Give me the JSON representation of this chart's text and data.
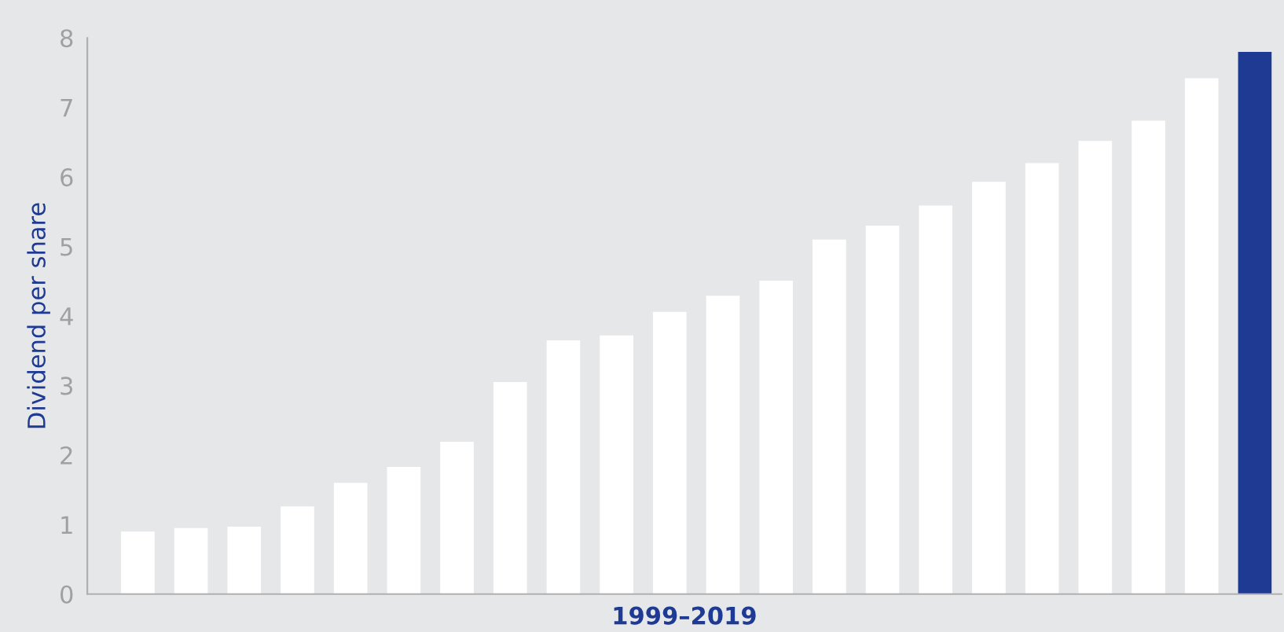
{
  "chart_data": {
    "type": "bar",
    "xlabel": "1999–2019",
    "ylabel": "Dividend per share",
    "categories": [
      null,
      null,
      null,
      null,
      null,
      null,
      null,
      null,
      null,
      null,
      null,
      null,
      null,
      null,
      null,
      null,
      null,
      null,
      null,
      null,
      null,
      null
    ],
    "values": [
      0.9,
      0.95,
      0.97,
      1.26,
      1.6,
      1.83,
      2.19,
      3.05,
      3.65,
      3.72,
      4.06,
      4.29,
      4.51,
      5.1,
      5.3,
      5.59,
      5.93,
      6.2,
      6.52,
      6.81,
      7.42,
      7.8
    ],
    "colors": [
      "#ffffff",
      "#ffffff",
      "#ffffff",
      "#ffffff",
      "#ffffff",
      "#ffffff",
      "#ffffff",
      "#ffffff",
      "#ffffff",
      "#ffffff",
      "#ffffff",
      "#ffffff",
      "#ffffff",
      "#ffffff",
      "#ffffff",
      "#ffffff",
      "#ffffff",
      "#ffffff",
      "#ffffff",
      "#ffffff",
      "#ffffff",
      "#1f3a93"
    ],
    "ylim": [
      0,
      8
    ],
    "yticks": [
      0,
      1,
      2,
      3,
      4,
      5,
      6,
      7,
      8
    ],
    "grid": false,
    "legend": false
  }
}
